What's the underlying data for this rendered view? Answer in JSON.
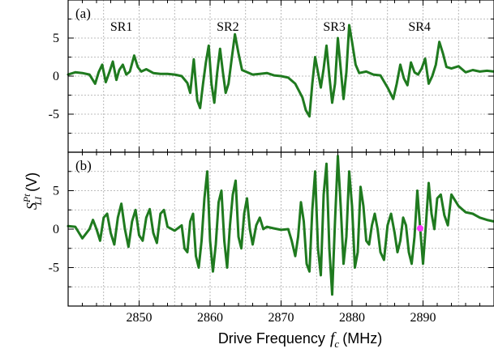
{
  "chart_data": [
    {
      "type": "line",
      "panel_label": "(a)",
      "xlim": [
        2840,
        2900
      ],
      "ylim": [
        -10,
        10
      ],
      "xticks": [
        2850,
        2860,
        2870,
        2880,
        2890
      ],
      "yticks": [
        -5,
        0,
        5
      ],
      "grid": true,
      "annotations": [
        {
          "text": "SR1",
          "x": 2847.5,
          "y": 6.5
        },
        {
          "text": "SR2",
          "x": 2862.5,
          "y": 6.5
        },
        {
          "text": "SR3",
          "x": 2877.5,
          "y": 6.5
        },
        {
          "text": "SR4",
          "x": 2889.5,
          "y": 6.5
        }
      ],
      "series": [
        {
          "color": "#1f7a1f",
          "x": [
            2840,
            2841,
            2842,
            2843,
            2843.8,
            2844.3,
            2844.8,
            2845.3,
            2845.8,
            2846.3,
            2846.8,
            2847.2,
            2847.7,
            2848.2,
            2848.7,
            2849.3,
            2849.8,
            2850.3,
            2851,
            2852,
            2853,
            2854,
            2855,
            2856,
            2856.8,
            2857.2,
            2857.7,
            2858.2,
            2858.6,
            2859,
            2859.4,
            2859.8,
            2860.2,
            2860.6,
            2861,
            2861.4,
            2861.8,
            2862.2,
            2862.6,
            2863,
            2863.5,
            2864,
            2864.5,
            2865,
            2866,
            2867,
            2868,
            2869,
            2870,
            2871,
            2872,
            2873,
            2873.5,
            2874,
            2874.4,
            2874.8,
            2875.2,
            2875.6,
            2876,
            2876.4,
            2876.8,
            2877.2,
            2877.6,
            2878,
            2878.4,
            2878.8,
            2879.2,
            2879.6,
            2880,
            2880.5,
            2881,
            2882,
            2883,
            2884,
            2885,
            2885.8,
            2886.3,
            2886.8,
            2887.3,
            2887.8,
            2888.3,
            2888.8,
            2889.3,
            2889.8,
            2890.3,
            2890.8,
            2891.3,
            2891.8,
            2892.3,
            2892.8,
            2893.3,
            2894,
            2895,
            2896,
            2897,
            2898,
            2899,
            2900
          ],
          "y": [
            0.2,
            0.5,
            0.4,
            0.2,
            -1.0,
            0.5,
            1.5,
            -0.8,
            0.5,
            1.9,
            -0.5,
            0.8,
            1.5,
            0.2,
            0.6,
            2.7,
            1.2,
            0.6,
            0.9,
            0.4,
            0.3,
            0.3,
            0.2,
            0.0,
            -0.9,
            -2.2,
            2.2,
            -3.2,
            -4.2,
            -1.0,
            1.8,
            4.0,
            -1.0,
            -3.5,
            0.5,
            3.6,
            0.5,
            -2.2,
            -1.0,
            2.0,
            5.5,
            3.0,
            0.8,
            0.6,
            0.2,
            0.3,
            0.4,
            0.1,
            0.0,
            -0.2,
            -1.0,
            -2.8,
            -4.5,
            -5.3,
            -1.0,
            2.5,
            0.5,
            -1.5,
            1.0,
            4.0,
            0.0,
            -3.5,
            -1.0,
            5.0,
            1.0,
            -3.0,
            0.5,
            6.7,
            4.5,
            1.5,
            0.4,
            0.6,
            0.2,
            0.1,
            -1.5,
            -3.0,
            -1.0,
            1.5,
            -0.3,
            -1.2,
            1.8,
            0.5,
            0.2,
            1.0,
            2.3,
            -1.0,
            0.0,
            1.5,
            4.5,
            3.0,
            1.2,
            1.0,
            1.3,
            0.5,
            0.8,
            0.6,
            0.7,
            0.6
          ]
        }
      ]
    },
    {
      "type": "line",
      "panel_label": "(b)",
      "xlim": [
        2840,
        2900
      ],
      "ylim": [
        -10,
        10
      ],
      "xticks": [
        2850,
        2860,
        2870,
        2880,
        2890
      ],
      "yticks": [
        -5,
        0,
        5
      ],
      "grid": true,
      "marker": {
        "x": 2889.6,
        "y": 0.1,
        "color": "#ff33ff"
      },
      "series": [
        {
          "color": "#1f7a1f",
          "x": [
            2840,
            2841,
            2842,
            2843,
            2843.5,
            2844,
            2844.5,
            2845,
            2845.5,
            2846,
            2846.5,
            2847,
            2847.5,
            2848,
            2848.5,
            2849,
            2849.5,
            2850,
            2850.5,
            2851,
            2851.5,
            2852,
            2852.5,
            2853,
            2853.5,
            2854,
            2855,
            2856,
            2856.4,
            2856.8,
            2857.2,
            2857.6,
            2858,
            2858.4,
            2858.8,
            2859.2,
            2859.6,
            2860,
            2860.4,
            2860.8,
            2861.2,
            2861.6,
            2862,
            2862.4,
            2862.8,
            2863.2,
            2863.6,
            2864,
            2864.4,
            2864.8,
            2865.2,
            2865.6,
            2866,
            2866.5,
            2867,
            2867.5,
            2868,
            2869,
            2870,
            2871,
            2871.5,
            2872,
            2872.4,
            2872.8,
            2873.2,
            2873.6,
            2874,
            2874.4,
            2874.8,
            2875.2,
            2875.6,
            2876,
            2876.4,
            2876.8,
            2877.2,
            2877.6,
            2878,
            2878.4,
            2878.8,
            2879.2,
            2879.6,
            2880,
            2880.4,
            2880.8,
            2881.2,
            2881.6,
            2882,
            2882.4,
            2882.8,
            2883.2,
            2883.6,
            2884,
            2884.5,
            2885,
            2885.5,
            2886,
            2886.4,
            2886.8,
            2887.2,
            2887.6,
            2888,
            2888.4,
            2888.8,
            2889.2,
            2889.6,
            2890,
            2890.4,
            2890.8,
            2891.2,
            2891.6,
            2892,
            2892.5,
            2893,
            2893.5,
            2894,
            2895,
            2896,
            2897,
            2898,
            2899,
            2900
          ],
          "y": [
            0.4,
            0.3,
            -1.2,
            0.0,
            1.2,
            0.0,
            -1.5,
            1.5,
            2.0,
            -0.5,
            -2.0,
            1.5,
            3.3,
            0.0,
            -2.3,
            1.0,
            2.5,
            -0.8,
            -1.5,
            1.5,
            2.6,
            -0.5,
            -1.8,
            2.0,
            2.5,
            0.3,
            -0.2,
            0.5,
            -2.5,
            -3.0,
            1.0,
            2.0,
            -3.5,
            -5.0,
            -1.5,
            4.0,
            7.5,
            -1.5,
            -5.5,
            -2.0,
            3.5,
            5.0,
            -1.5,
            -5.0,
            0.5,
            4.5,
            6.3,
            -1.0,
            -2.5,
            2.0,
            4.0,
            0.0,
            -2.0,
            0.5,
            1.5,
            0.0,
            0.3,
            0.1,
            -0.1,
            0.0,
            -1.5,
            -3.5,
            -1.0,
            3.5,
            1.0,
            -4.5,
            -5.5,
            2.5,
            7.5,
            -2.5,
            -6.0,
            4.5,
            8.5,
            -2.5,
            -8.5,
            1.0,
            9.5,
            3.0,
            -4.5,
            -1.0,
            7.5,
            3.0,
            -5.0,
            -3.0,
            5.5,
            3.0,
            -1.5,
            -2.0,
            0.5,
            2.0,
            0.0,
            -3.0,
            -4.0,
            0.5,
            2.0,
            -0.5,
            -3.0,
            -1.5,
            1.5,
            0.5,
            -3.0,
            -4.5,
            -1.0,
            5.0,
            0.1,
            -4.5,
            0.5,
            6.0,
            2.0,
            0.0,
            4.0,
            4.5,
            1.8,
            0.5,
            4.5,
            3.0,
            2.2,
            2.0,
            1.5,
            1.2,
            1.0
          ]
        }
      ]
    }
  ],
  "y_axis_label": {
    "main": "S",
    "sup": "Pt",
    "sub": "LI",
    "unit": "(V)"
  },
  "x_axis_label": {
    "text": "Drive Frequency",
    "symbol": "f",
    "symbol_sub": "c",
    "unit": "(MHz)"
  }
}
